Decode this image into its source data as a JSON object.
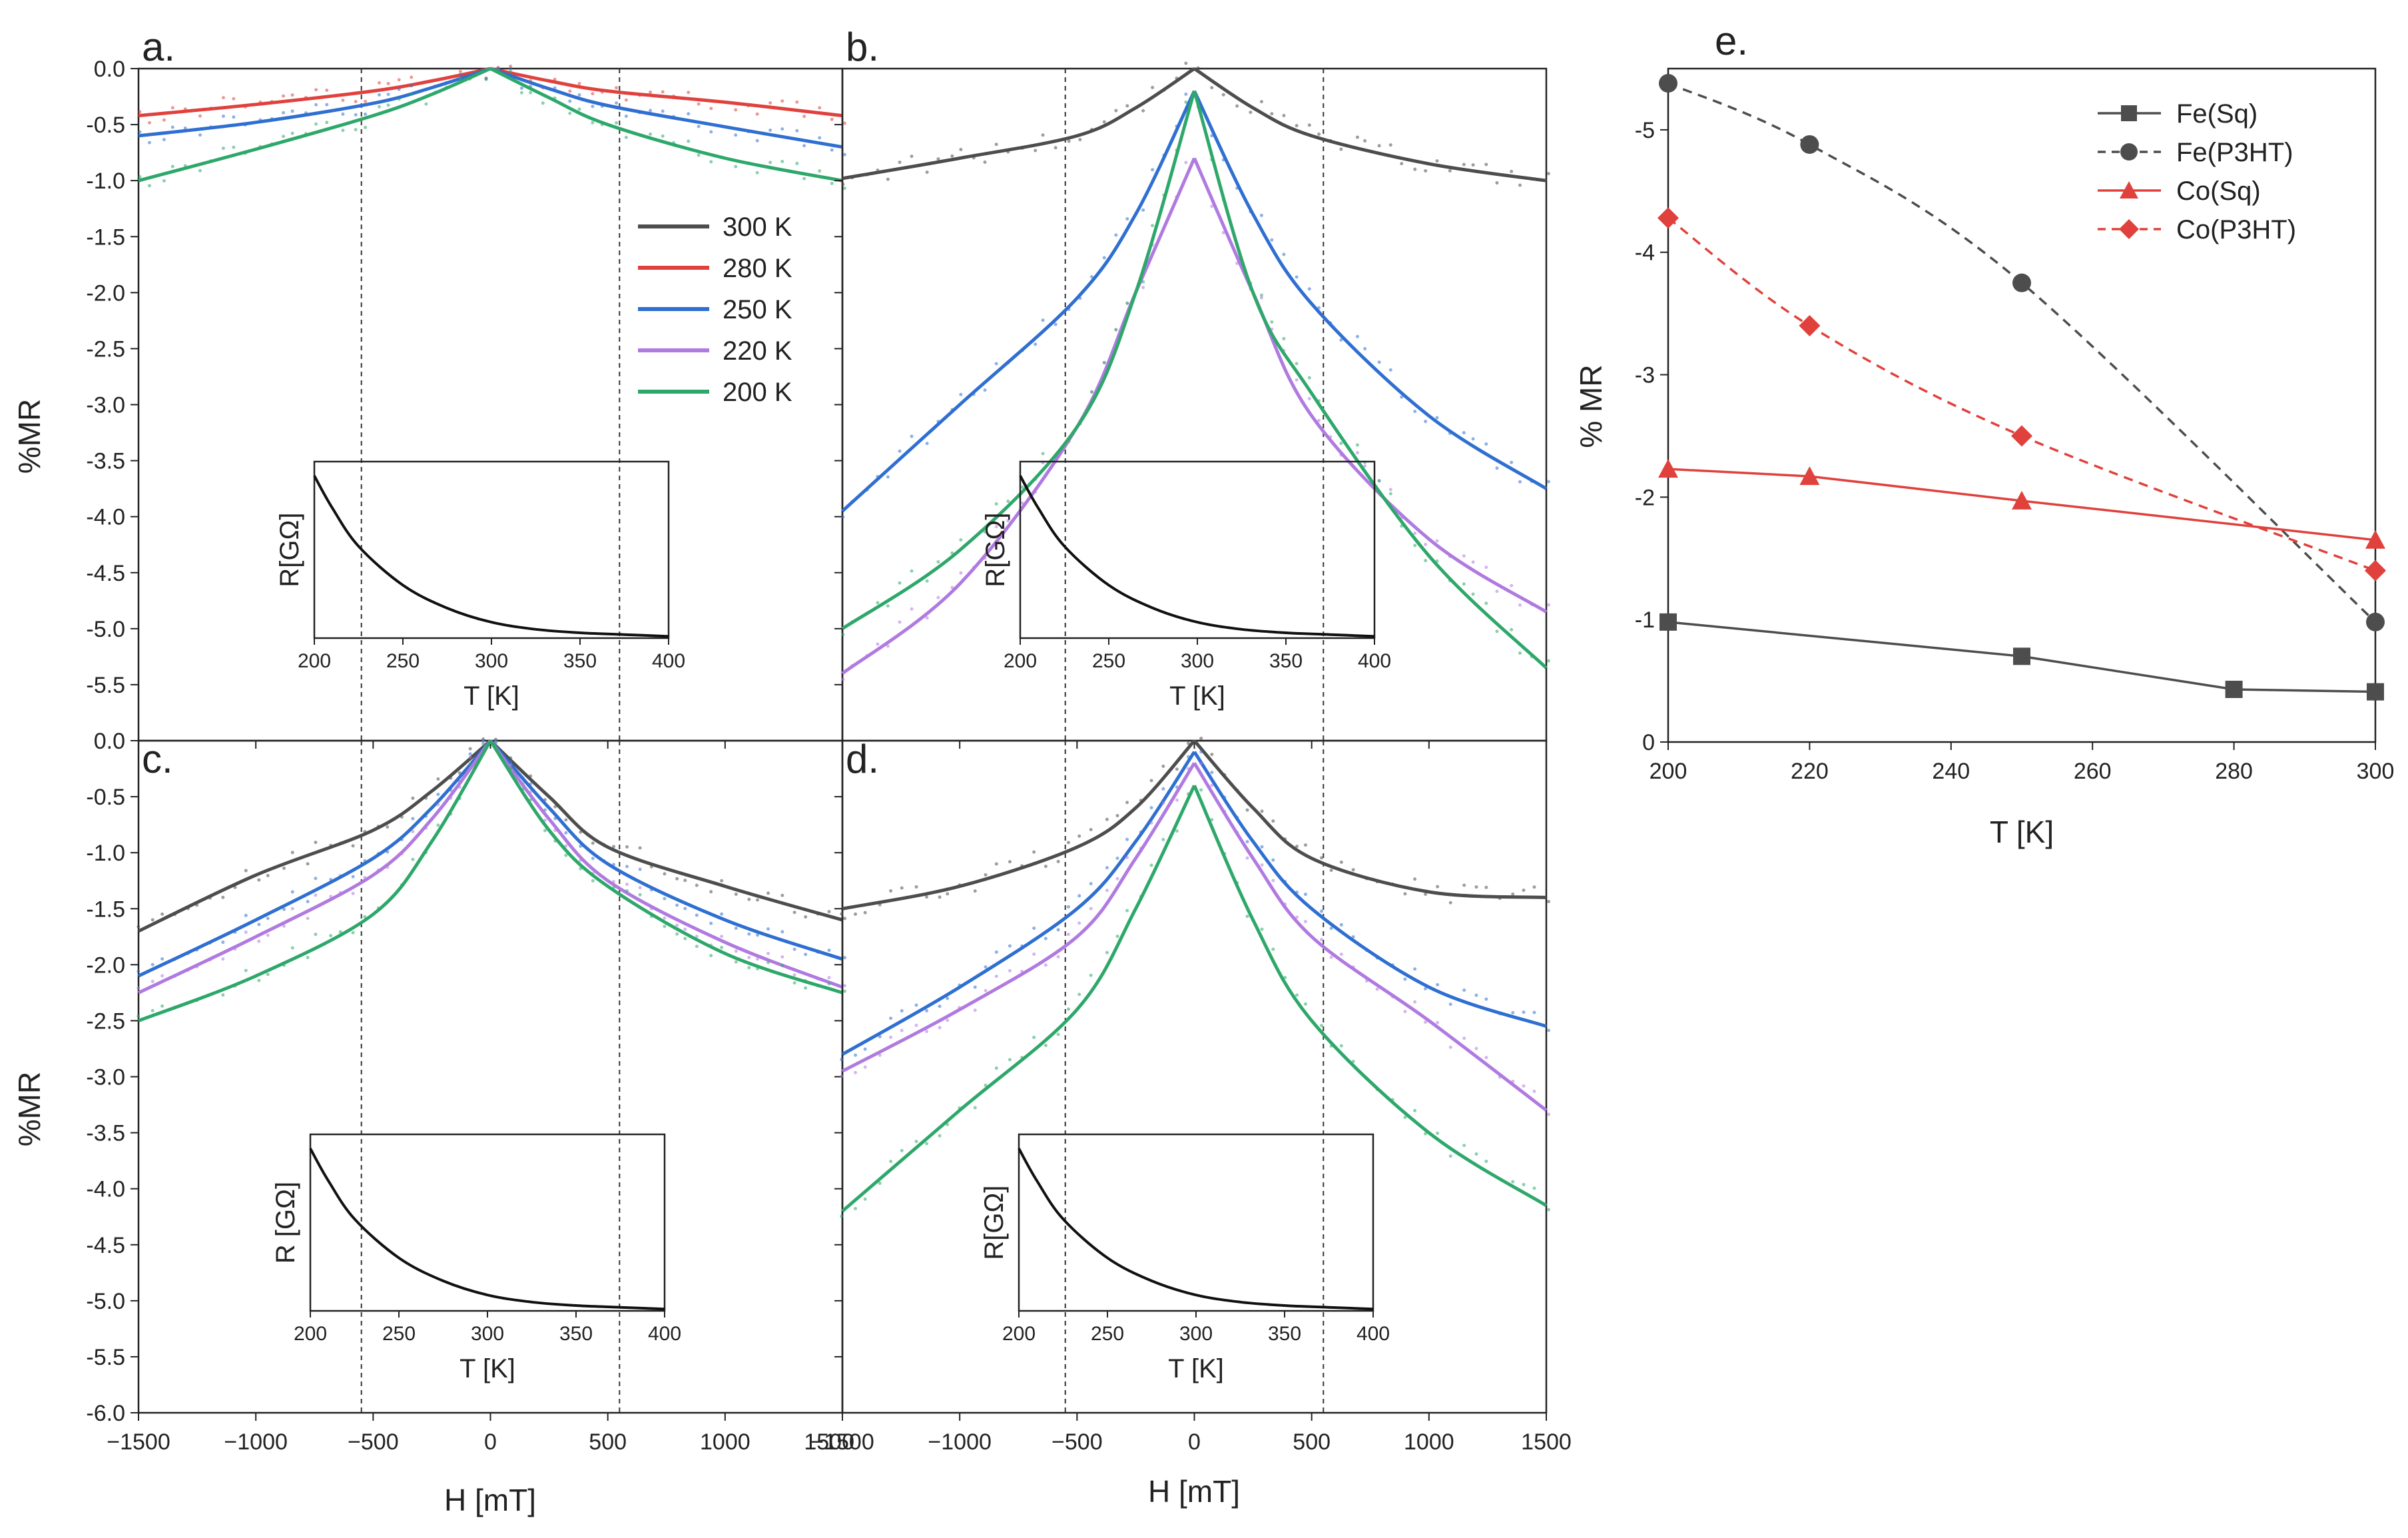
{
  "figure": {
    "ylabel_left": "%MR",
    "xlabel_bottom": "H [mT]",
    "inset_xlabel": "T [K]",
    "inset_ylabel_top": "R[GΩ]",
    "inset_ylabel_bottom": "R [GΩ]"
  },
  "chart_data": [
    {
      "panel": "a.",
      "type": "line",
      "xlim": [
        -1500,
        1500
      ],
      "ylim": [
        -6.0,
        0.0
      ],
      "yticks": [
        "0.0",
        "-0.5",
        "-1.0",
        "-1.5",
        "-2.0",
        "-2.5",
        "-3.0",
        "-3.5",
        "-4.0",
        "-4.5",
        "-5.0",
        "-5.5"
      ],
      "vlines": [
        -550,
        550
      ],
      "legend": [
        "300 K",
        "280 K",
        "250 K",
        "220 K",
        "200 K"
      ],
      "series": [
        {
          "name": "280 K",
          "color": "#e0413c",
          "x": [
            -1500,
            -1000,
            -500,
            -250,
            0,
            250,
            500,
            1000,
            1500
          ],
          "y": [
            -0.42,
            -0.32,
            -0.2,
            -0.11,
            0,
            -0.11,
            -0.2,
            -0.3,
            -0.42
          ]
        },
        {
          "name": "250 K",
          "color": "#2f6fd1",
          "x": [
            -1500,
            -1000,
            -500,
            -250,
            0,
            250,
            500,
            1000,
            1500
          ],
          "y": [
            -0.6,
            -0.48,
            -0.31,
            -0.17,
            0,
            -0.18,
            -0.33,
            -0.52,
            -0.7
          ]
        },
        {
          "name": "200 K",
          "color": "#2ea86a",
          "x": [
            -1500,
            -1000,
            -500,
            -250,
            0,
            250,
            500,
            1000,
            1500
          ],
          "y": [
            -1.0,
            -0.72,
            -0.42,
            -0.23,
            0,
            -0.26,
            -0.5,
            -0.8,
            -1.0
          ]
        }
      ],
      "inset": {
        "xlim": [
          200,
          400
        ],
        "xticks": [
          "200",
          "250",
          "300",
          "350",
          "400"
        ],
        "x": [
          200,
          210,
          225,
          250,
          275,
          300,
          325,
          350,
          375,
          400
        ],
        "y": [
          0.92,
          0.74,
          0.52,
          0.3,
          0.17,
          0.09,
          0.05,
          0.03,
          0.02,
          0.01
        ]
      }
    },
    {
      "panel": "b.",
      "type": "line",
      "xlim": [
        -1500,
        1500
      ],
      "ylim": [
        -6.0,
        0.0
      ],
      "vlines": [
        -550,
        550
      ],
      "series": [
        {
          "name": "300 K",
          "color": "#4d4d4d",
          "x": [
            -1500,
            -1000,
            -500,
            -250,
            0,
            250,
            500,
            1000,
            1500
          ],
          "y": [
            -0.98,
            -0.8,
            -0.6,
            -0.35,
            0,
            -0.35,
            -0.6,
            -0.85,
            -1.0
          ]
        },
        {
          "name": "250 K",
          "color": "#2f6fd1",
          "x": [
            -1500,
            -1000,
            -500,
            -250,
            0,
            250,
            500,
            1000,
            1500
          ],
          "y": [
            -3.95,
            -3.0,
            -2.05,
            -1.3,
            -0.2,
            -1.3,
            -2.1,
            -3.1,
            -3.75
          ]
        },
        {
          "name": "220 K",
          "color": "#b07ae0",
          "x": [
            -1500,
            -1000,
            -500,
            -250,
            0,
            250,
            500,
            1000,
            1500
          ],
          "y": [
            -5.4,
            -4.6,
            -3.2,
            -2.0,
            -0.8,
            -2.0,
            -3.1,
            -4.2,
            -4.85
          ]
        },
        {
          "name": "200 K",
          "color": "#2ea86a",
          "x": [
            -1500,
            -1000,
            -500,
            -250,
            0,
            250,
            500,
            1000,
            1500
          ],
          "y": [
            -5.0,
            -4.3,
            -3.2,
            -2.0,
            -0.2,
            -2.0,
            -2.9,
            -4.35,
            -5.35
          ]
        }
      ],
      "inset": {
        "xlim": [
          200,
          400
        ],
        "xticks": [
          "200",
          "250",
          "300",
          "350",
          "400"
        ],
        "x": [
          200,
          210,
          225,
          250,
          275,
          300,
          325,
          350,
          375,
          400
        ],
        "y": [
          0.92,
          0.74,
          0.52,
          0.3,
          0.17,
          0.09,
          0.05,
          0.03,
          0.02,
          0.01
        ]
      }
    },
    {
      "panel": "c.",
      "type": "line",
      "xlim": [
        -1500,
        1500
      ],
      "ylim": [
        -6.0,
        0.0
      ],
      "xticks": [
        "−1500",
        "−1000",
        "−500",
        "0",
        "500",
        "1000",
        "1500"
      ],
      "yticks": [
        "0.0",
        "-0.5",
        "-1.0",
        "-1.5",
        "-2.0",
        "-2.5",
        "-3.0",
        "-3.5",
        "-4.0",
        "-4.5",
        "-5.0",
        "-5.5",
        "-6.0"
      ],
      "vlines": [
        -550,
        550
      ],
      "series": [
        {
          "name": "300 K",
          "color": "#4d4d4d",
          "x": [
            -1500,
            -1000,
            -500,
            -250,
            0,
            250,
            500,
            1000,
            1500
          ],
          "y": [
            -1.7,
            -1.2,
            -0.8,
            -0.45,
            0,
            -0.5,
            -0.95,
            -1.3,
            -1.6
          ]
        },
        {
          "name": "250 K",
          "color": "#2f6fd1",
          "x": [
            -1500,
            -1000,
            -500,
            -250,
            0,
            250,
            500,
            1000,
            1500
          ],
          "y": [
            -2.1,
            -1.6,
            -1.05,
            -0.6,
            0,
            -0.6,
            -1.1,
            -1.6,
            -1.95
          ]
        },
        {
          "name": "220 K",
          "color": "#b07ae0",
          "x": [
            -1500,
            -1000,
            -500,
            -250,
            0,
            250,
            500,
            1000,
            1500
          ],
          "y": [
            -2.25,
            -1.75,
            -1.2,
            -0.7,
            0,
            -0.7,
            -1.25,
            -1.8,
            -2.2
          ]
        },
        {
          "name": "200 K",
          "color": "#2ea86a",
          "x": [
            -1500,
            -1000,
            -500,
            -250,
            0,
            250,
            500,
            1000,
            1500
          ],
          "y": [
            -2.5,
            -2.1,
            -1.55,
            -0.9,
            0,
            -0.8,
            -1.3,
            -1.9,
            -2.25
          ]
        }
      ],
      "inset": {
        "xlim": [
          200,
          400
        ],
        "xticks": [
          "200",
          "250",
          "300",
          "350",
          "400"
        ],
        "x": [
          200,
          210,
          225,
          250,
          275,
          300,
          325,
          350,
          375,
          400
        ],
        "y": [
          0.92,
          0.74,
          0.52,
          0.3,
          0.17,
          0.09,
          0.05,
          0.03,
          0.02,
          0.01
        ]
      }
    },
    {
      "panel": "d.",
      "type": "line",
      "xlim": [
        -1500,
        1500
      ],
      "ylim": [
        -6.0,
        0.0
      ],
      "xticks": [
        "−1500",
        "−1000",
        "−500",
        "0",
        "500",
        "1000",
        "1500"
      ],
      "vlines": [
        -550,
        550
      ],
      "series": [
        {
          "name": "300 K",
          "color": "#4d4d4d",
          "x": [
            -1500,
            -1000,
            -500,
            -250,
            0,
            250,
            500,
            1000,
            1500
          ],
          "y": [
            -1.5,
            -1.3,
            -0.95,
            -0.6,
            0,
            -0.6,
            -1.05,
            -1.35,
            -1.4
          ]
        },
        {
          "name": "250 K",
          "color": "#2f6fd1",
          "x": [
            -1500,
            -1000,
            -500,
            -250,
            0,
            250,
            500,
            1000,
            1500
          ],
          "y": [
            -2.8,
            -2.2,
            -1.5,
            -0.9,
            -0.1,
            -0.9,
            -1.5,
            -2.2,
            -2.55
          ]
        },
        {
          "name": "220 K",
          "color": "#b07ae0",
          "x": [
            -1500,
            -1000,
            -500,
            -250,
            0,
            250,
            500,
            1000,
            1500
          ],
          "y": [
            -2.95,
            -2.4,
            -1.75,
            -1.05,
            -0.2,
            -1.05,
            -1.75,
            -2.5,
            -3.3
          ]
        },
        {
          "name": "200 K",
          "color": "#2ea86a",
          "x": [
            -1500,
            -1000,
            -500,
            -250,
            0,
            250,
            500,
            1000,
            1500
          ],
          "y": [
            -4.2,
            -3.3,
            -2.4,
            -1.5,
            -0.4,
            -1.6,
            -2.5,
            -3.5,
            -4.15
          ]
        }
      ],
      "inset": {
        "xlim": [
          200,
          400
        ],
        "xticks": [
          "200",
          "250",
          "300",
          "350",
          "400"
        ],
        "x": [
          200,
          210,
          225,
          250,
          275,
          300,
          325,
          350,
          375,
          400
        ],
        "y": [
          0.92,
          0.74,
          0.52,
          0.3,
          0.17,
          0.09,
          0.05,
          0.03,
          0.02,
          0.01
        ]
      }
    },
    {
      "panel": "e.",
      "type": "line",
      "xlabel": "T [K]",
      "ylabel": "% MR",
      "xlim": [
        200,
        300
      ],
      "ylim": [
        0,
        -5.5
      ],
      "xticks": [
        "200",
        "220",
        "240",
        "260",
        "280",
        "300"
      ],
      "yticks": [
        "0",
        "-1",
        "-2",
        "-3",
        "-4",
        "-5"
      ],
      "series": [
        {
          "name": "Fe(Sq)",
          "color": "#4d4d4d",
          "dash": false,
          "marker": "square",
          "x": [
            200,
            250,
            280,
            300
          ],
          "y": [
            -0.98,
            -0.7,
            -0.43,
            -0.41
          ]
        },
        {
          "name": "Fe(P3HT)",
          "color": "#4d4d4d",
          "dash": true,
          "marker": "circle",
          "x": [
            200,
            220,
            250,
            300
          ],
          "y": [
            -5.38,
            -4.88,
            -3.75,
            -0.98
          ]
        },
        {
          "name": "Co(Sq)",
          "color": "#e0413c",
          "dash": false,
          "marker": "triangle",
          "x": [
            200,
            220,
            250,
            300
          ],
          "y": [
            -2.23,
            -2.17,
            -1.97,
            -1.65
          ]
        },
        {
          "name": "Co(P3HT)",
          "color": "#e0413c",
          "dash": true,
          "marker": "diamond",
          "x": [
            200,
            220,
            250,
            300
          ],
          "y": [
            -4.28,
            -3.4,
            -2.5,
            -1.4
          ]
        }
      ]
    }
  ]
}
